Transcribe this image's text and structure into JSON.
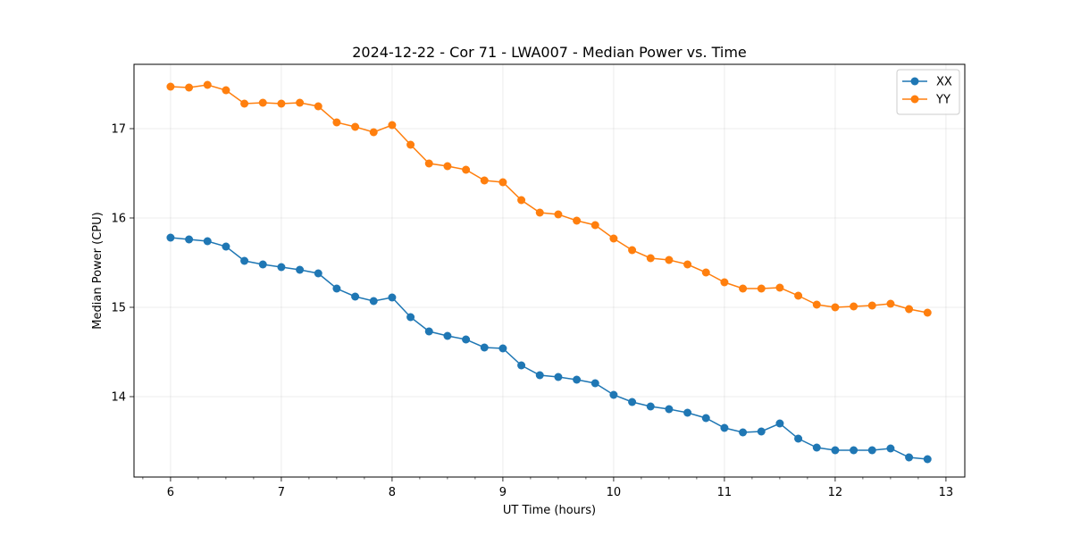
{
  "chart_data": {
    "type": "line",
    "title": "2024-12-22 - Cor 71 - LWA007 - Median Power vs. Time",
    "xlabel": "UT Time (hours)",
    "ylabel": "Median Power (CPU)",
    "xlim": [
      5.67,
      13.17
    ],
    "ylim": [
      13.1,
      17.72
    ],
    "xticks": [
      6,
      7,
      8,
      9,
      10,
      11,
      12,
      13
    ],
    "yticks": [
      14,
      15,
      16,
      17
    ],
    "grid": true,
    "legend_position": "top-right",
    "x": [
      6.0,
      6.1667,
      6.3333,
      6.5,
      6.6667,
      6.8333,
      7.0,
      7.1667,
      7.3333,
      7.5,
      7.6667,
      7.8333,
      8.0,
      8.1667,
      8.3333,
      8.5,
      8.6667,
      8.8333,
      9.0,
      9.1667,
      9.3333,
      9.5,
      9.6667,
      9.8333,
      10.0,
      10.1667,
      10.3333,
      10.5,
      10.6667,
      10.8333,
      11.0,
      11.1667,
      11.3333,
      11.5,
      11.6667,
      11.8333,
      12.0,
      12.1667,
      12.3333,
      12.5,
      12.6667,
      12.8333
    ],
    "series": [
      {
        "name": "XX",
        "color": "#1f77b4",
        "values": [
          15.78,
          15.76,
          15.74,
          15.68,
          15.52,
          15.48,
          15.45,
          15.42,
          15.38,
          15.21,
          15.12,
          15.07,
          15.11,
          14.89,
          14.73,
          14.68,
          14.64,
          14.55,
          14.54,
          14.35,
          14.24,
          14.22,
          14.19,
          14.15,
          14.02,
          13.94,
          13.89,
          13.86,
          13.82,
          13.76,
          13.65,
          13.6,
          13.61,
          13.7,
          13.53,
          13.43,
          13.4,
          13.4,
          13.4,
          13.42,
          13.32,
          13.3
        ]
      },
      {
        "name": "YY",
        "color": "#ff7f0e",
        "values": [
          17.47,
          17.46,
          17.49,
          17.43,
          17.28,
          17.29,
          17.28,
          17.29,
          17.25,
          17.07,
          17.02,
          16.96,
          17.04,
          16.82,
          16.61,
          16.58,
          16.54,
          16.42,
          16.4,
          16.2,
          16.06,
          16.04,
          15.97,
          15.92,
          15.77,
          15.64,
          15.55,
          15.53,
          15.48,
          15.39,
          15.28,
          15.21,
          15.21,
          15.22,
          15.13,
          15.03,
          15.0,
          15.01,
          15.02,
          15.04,
          14.98,
          14.94
        ]
      }
    ]
  }
}
